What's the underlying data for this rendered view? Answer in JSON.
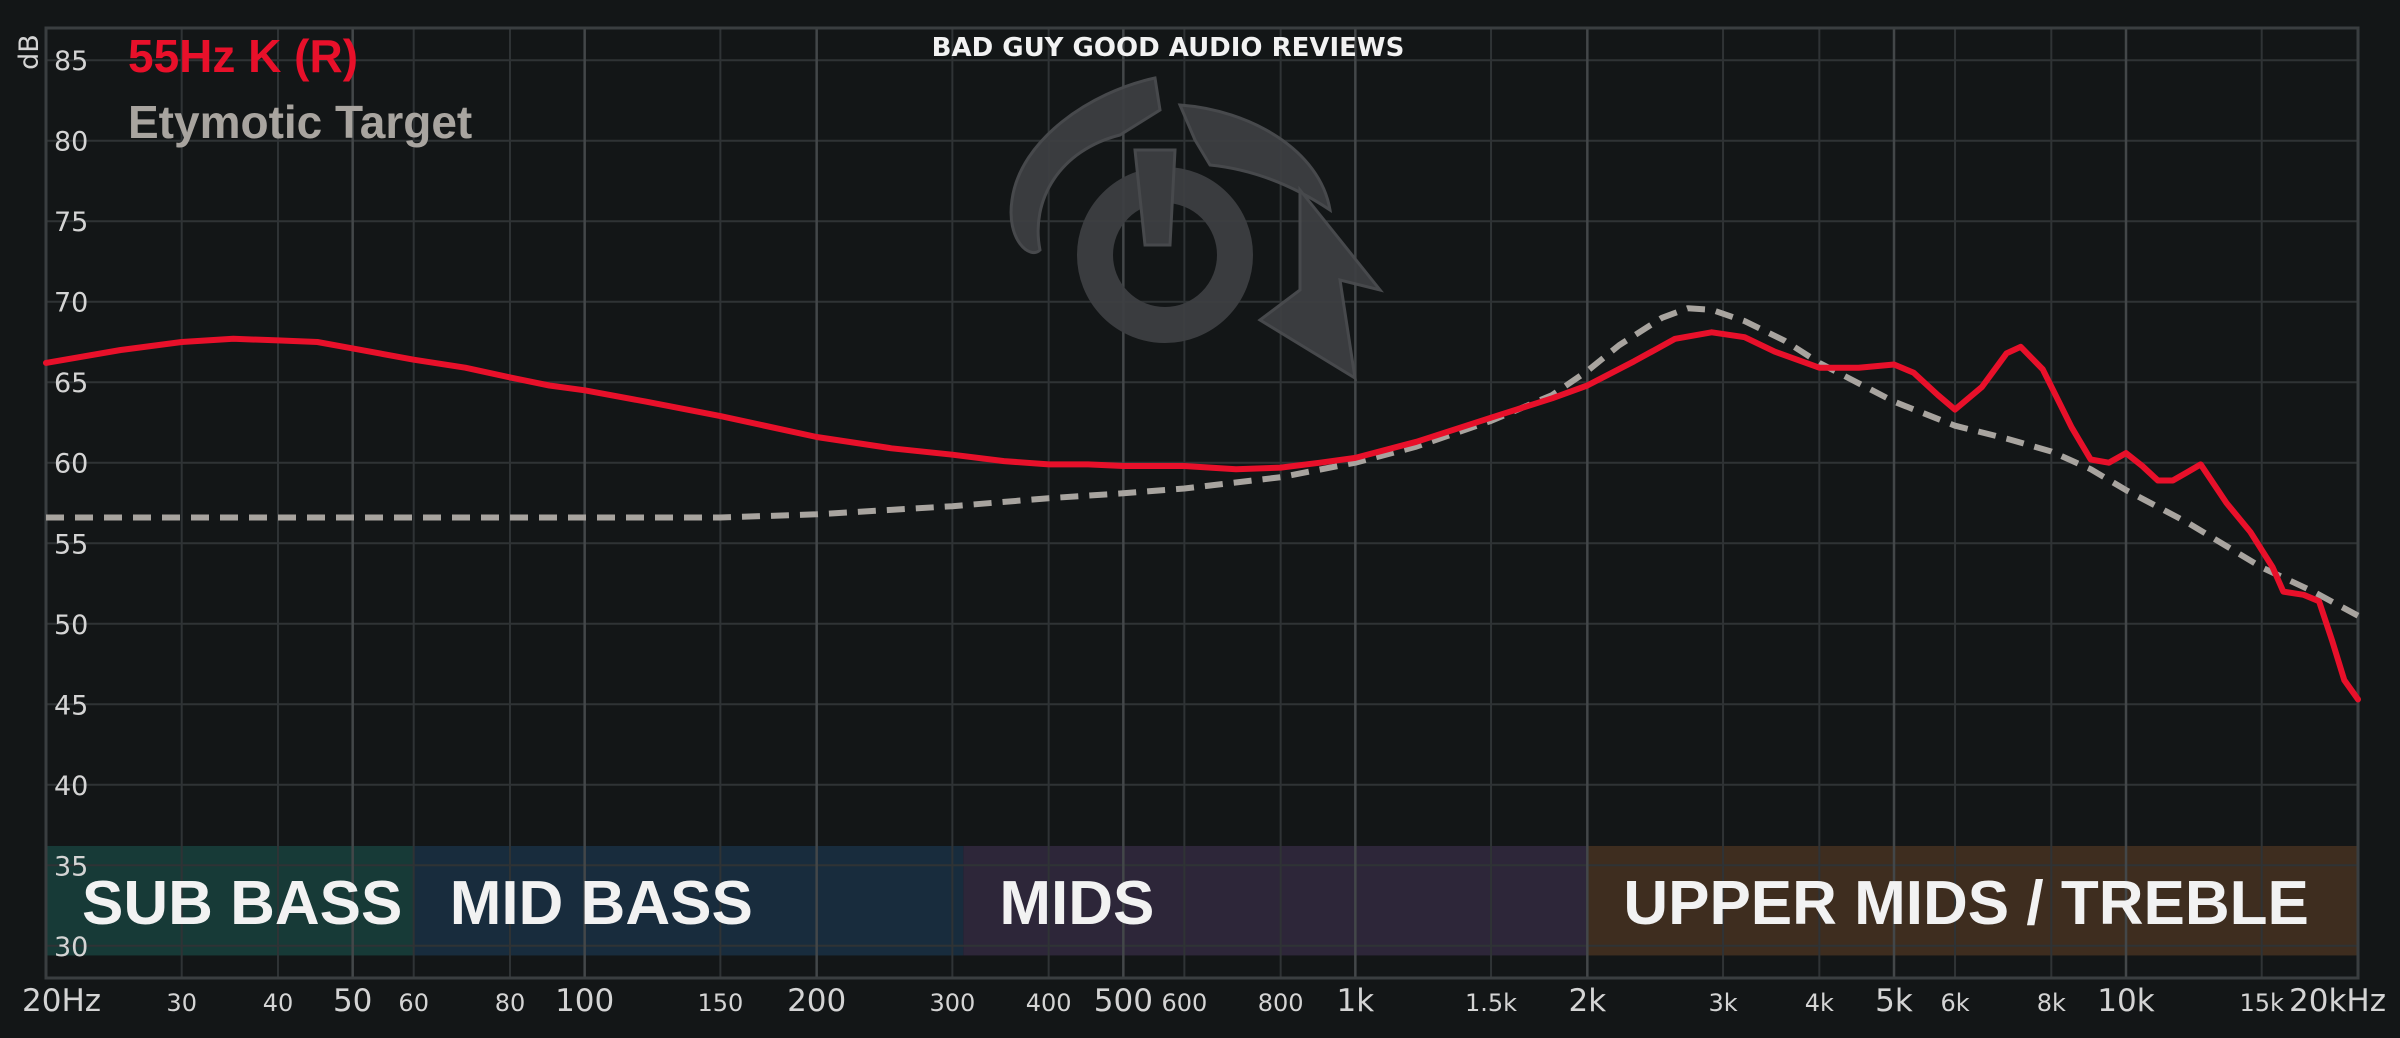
{
  "chart_data": {
    "type": "line",
    "title": "",
    "watermark": "BAD GUY GOOD AUDIO REVIEWS",
    "xlabel": "",
    "ylabel": "dB",
    "x_scale": "log",
    "xlim": [
      20,
      20000
    ],
    "ylim": [
      28,
      87
    ],
    "grid": true,
    "legend_position": "top-left",
    "y_ticks": [
      {
        "value": 85,
        "label": "85"
      },
      {
        "value": 80,
        "label": "80"
      },
      {
        "value": 75,
        "label": "75"
      },
      {
        "value": 70,
        "label": "70"
      },
      {
        "value": 65,
        "label": "65"
      },
      {
        "value": 60,
        "label": "60"
      },
      {
        "value": 55,
        "label": "55"
      },
      {
        "value": 50,
        "label": "50"
      },
      {
        "value": 45,
        "label": "45"
      },
      {
        "value": 40,
        "label": "40"
      },
      {
        "value": 35,
        "label": "35"
      },
      {
        "value": 30,
        "label": "30"
      }
    ],
    "x_ticks": [
      {
        "value": 20,
        "label": "20Hz",
        "major": true
      },
      {
        "value": 30,
        "label": "30",
        "major": false
      },
      {
        "value": 40,
        "label": "40",
        "major": false
      },
      {
        "value": 50,
        "label": "50",
        "major": true
      },
      {
        "value": 60,
        "label": "60",
        "major": false
      },
      {
        "value": 80,
        "label": "80",
        "major": false
      },
      {
        "value": 100,
        "label": "100",
        "major": true
      },
      {
        "value": 150,
        "label": "150",
        "major": false
      },
      {
        "value": 200,
        "label": "200",
        "major": true
      },
      {
        "value": 300,
        "label": "300",
        "major": false
      },
      {
        "value": 400,
        "label": "400",
        "major": false
      },
      {
        "value": 500,
        "label": "500",
        "major": true
      },
      {
        "value": 600,
        "label": "600",
        "major": false
      },
      {
        "value": 800,
        "label": "800",
        "major": false
      },
      {
        "value": 1000,
        "label": "1k",
        "major": true
      },
      {
        "value": 1500,
        "label": "1.5k",
        "major": false
      },
      {
        "value": 2000,
        "label": "2k",
        "major": true
      },
      {
        "value": 3000,
        "label": "3k",
        "major": false
      },
      {
        "value": 4000,
        "label": "4k",
        "major": false
      },
      {
        "value": 5000,
        "label": "5k",
        "major": true
      },
      {
        "value": 6000,
        "label": "6k",
        "major": false
      },
      {
        "value": 8000,
        "label": "8k",
        "major": false
      },
      {
        "value": 10000,
        "label": "10k",
        "major": true
      },
      {
        "value": 15000,
        "label": "15k",
        "major": false
      },
      {
        "value": 20000,
        "label": "20kHz",
        "major": true
      }
    ],
    "bands": [
      {
        "label": "SUB BASS",
        "from": 20,
        "to": 60,
        "color": "#173a37"
      },
      {
        "label": "MID BASS",
        "from": 60,
        "to": 310,
        "color": "#182c3d"
      },
      {
        "label": "MIDS",
        "from": 310,
        "to": 2000,
        "color": "#2d2639"
      },
      {
        "label": "UPPER MIDS / TREBLE",
        "from": 2000,
        "to": 20000,
        "color": "#3e2d1f"
      }
    ],
    "series": [
      {
        "name": "55Hz K (R)",
        "color": "#e8102a",
        "style": "solid",
        "points": [
          [
            20,
            66.2
          ],
          [
            25,
            67.0
          ],
          [
            30,
            67.5
          ],
          [
            35,
            67.7
          ],
          [
            40,
            67.6
          ],
          [
            45,
            67.5
          ],
          [
            50,
            67.1
          ],
          [
            60,
            66.4
          ],
          [
            70,
            65.9
          ],
          [
            80,
            65.3
          ],
          [
            90,
            64.8
          ],
          [
            100,
            64.5
          ],
          [
            120,
            63.8
          ],
          [
            150,
            62.9
          ],
          [
            200,
            61.6
          ],
          [
            250,
            60.9
          ],
          [
            300,
            60.5
          ],
          [
            350,
            60.1
          ],
          [
            400,
            59.9
          ],
          [
            450,
            59.9
          ],
          [
            500,
            59.8
          ],
          [
            600,
            59.8
          ],
          [
            700,
            59.6
          ],
          [
            800,
            59.7
          ],
          [
            900,
            60.0
          ],
          [
            1000,
            60.3
          ],
          [
            1200,
            61.3
          ],
          [
            1500,
            62.8
          ],
          [
            1800,
            64.0
          ],
          [
            2000,
            64.8
          ],
          [
            2300,
            66.3
          ],
          [
            2600,
            67.7
          ],
          [
            2900,
            68.1
          ],
          [
            3200,
            67.8
          ],
          [
            3500,
            66.9
          ],
          [
            4000,
            65.9
          ],
          [
            4500,
            65.9
          ],
          [
            5000,
            66.1
          ],
          [
            5300,
            65.6
          ],
          [
            5700,
            64.2
          ],
          [
            6000,
            63.3
          ],
          [
            6500,
            64.7
          ],
          [
            7000,
            66.8
          ],
          [
            7300,
            67.2
          ],
          [
            7800,
            65.8
          ],
          [
            8500,
            62.2
          ],
          [
            9000,
            60.2
          ],
          [
            9500,
            60.0
          ],
          [
            10000,
            60.6
          ],
          [
            10500,
            59.8
          ],
          [
            11000,
            58.9
          ],
          [
            11500,
            58.9
          ],
          [
            12000,
            59.4
          ],
          [
            12500,
            59.9
          ],
          [
            13500,
            57.5
          ],
          [
            14500,
            55.7
          ],
          [
            15500,
            53.5
          ],
          [
            16000,
            52.0
          ],
          [
            17000,
            51.8
          ],
          [
            17800,
            51.4
          ],
          [
            18500,
            49.0
          ],
          [
            19200,
            46.5
          ],
          [
            20000,
            45.3
          ]
        ]
      },
      {
        "name": "Etymotic Target",
        "color": "#a8a49f",
        "style": "dashed",
        "points": [
          [
            20,
            56.6
          ],
          [
            50,
            56.6
          ],
          [
            100,
            56.6
          ],
          [
            150,
            56.6
          ],
          [
            200,
            56.8
          ],
          [
            300,
            57.3
          ],
          [
            400,
            57.8
          ],
          [
            500,
            58.1
          ],
          [
            600,
            58.4
          ],
          [
            800,
            59.1
          ],
          [
            1000,
            60.0
          ],
          [
            1200,
            61.0
          ],
          [
            1500,
            62.6
          ],
          [
            1800,
            64.2
          ],
          [
            2000,
            65.7
          ],
          [
            2200,
            67.3
          ],
          [
            2500,
            69.0
          ],
          [
            2700,
            69.6
          ],
          [
            2900,
            69.5
          ],
          [
            3200,
            68.8
          ],
          [
            3600,
            67.6
          ],
          [
            4000,
            66.2
          ],
          [
            5000,
            63.8
          ],
          [
            6000,
            62.3
          ],
          [
            7000,
            61.5
          ],
          [
            8000,
            60.7
          ],
          [
            9000,
            59.6
          ],
          [
            10000,
            58.3
          ],
          [
            12000,
            56.3
          ],
          [
            15000,
            53.5
          ],
          [
            17500,
            52.0
          ],
          [
            20000,
            50.5
          ]
        ]
      }
    ]
  },
  "colors": {
    "background": "#131617",
    "grid": "#2f3335",
    "grid_major": "#434749",
    "tick_text": "#d4d4d4"
  }
}
